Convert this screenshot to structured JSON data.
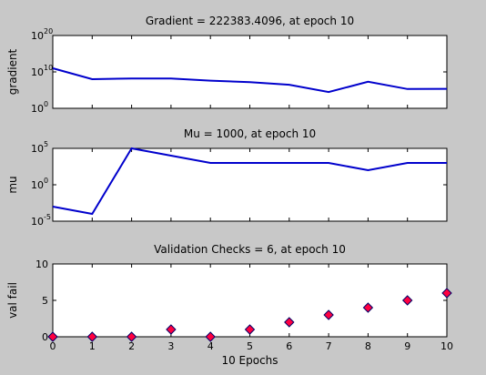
{
  "figure": {
    "background": "#c8c8c8",
    "axes_background": "#ffffff",
    "line_color": "#0000cc"
  },
  "chart_data": [
    {
      "type": "line",
      "title": "Gradient = 222383.4096, at epoch 10",
      "xlabel": "",
      "ylabel": "gradient",
      "yscale": "log",
      "ylim": [
        1,
        1e+20
      ],
      "xlim": [
        0,
        10
      ],
      "grid": false,
      "yticks": [
        {
          "value": 1,
          "base": "10",
          "exp": "0"
        },
        {
          "value": 10000000000.0,
          "base": "10",
          "exp": "10"
        },
        {
          "value": 1e+20,
          "base": "10",
          "exp": "20"
        }
      ],
      "x": [
        0,
        1,
        2,
        3,
        4,
        5,
        6,
        7,
        8,
        9,
        10
      ],
      "series": [
        {
          "values": [
            100000000000.0,
            100000000.0,
            160000000.0,
            150000000.0,
            40000000.0,
            15000000.0,
            3000000.0,
            30000.0,
            20000000.0,
            200000.0,
            220000.0
          ]
        }
      ]
    },
    {
      "type": "line",
      "title": "Mu = 1000, at epoch 10",
      "xlabel": "",
      "ylabel": "mu",
      "yscale": "log",
      "ylim": [
        1e-05,
        100000.0
      ],
      "xlim": [
        0,
        10
      ],
      "grid": false,
      "yticks": [
        {
          "value": 1e-05,
          "base": "10",
          "exp": "-5"
        },
        {
          "value": 1,
          "base": "10",
          "exp": "0"
        },
        {
          "value": 100000.0,
          "base": "10",
          "exp": "5"
        }
      ],
      "x": [
        0,
        1,
        2,
        3,
        4,
        5,
        6,
        7,
        8,
        9,
        10
      ],
      "series": [
        {
          "values": [
            0.001,
            0.0001,
            100000,
            10000,
            1000,
            1000,
            1000,
            1000,
            100,
            1000,
            1000
          ]
        }
      ]
    },
    {
      "type": "scatter",
      "title": "Validation Checks = 6, at epoch 10",
      "xlabel": "10 Epochs",
      "ylabel": "val fail",
      "yscale": "linear",
      "ylim": [
        0,
        10
      ],
      "xlim": [
        0,
        10
      ],
      "grid": false,
      "yticks": [
        {
          "value": 0,
          "label": "0"
        },
        {
          "value": 5,
          "label": "5"
        },
        {
          "value": 10,
          "label": "10"
        }
      ],
      "xticks": [
        0,
        1,
        2,
        3,
        4,
        5,
        6,
        7,
        8,
        9,
        10
      ],
      "x": [
        0,
        1,
        2,
        3,
        4,
        5,
        6,
        7,
        8,
        9,
        10
      ],
      "series": [
        {
          "values": [
            0,
            0,
            0,
            1,
            0,
            1,
            2,
            3,
            4,
            5,
            6
          ],
          "marker_fill": "#ff0040",
          "marker_edge": "#000066"
        }
      ]
    }
  ]
}
